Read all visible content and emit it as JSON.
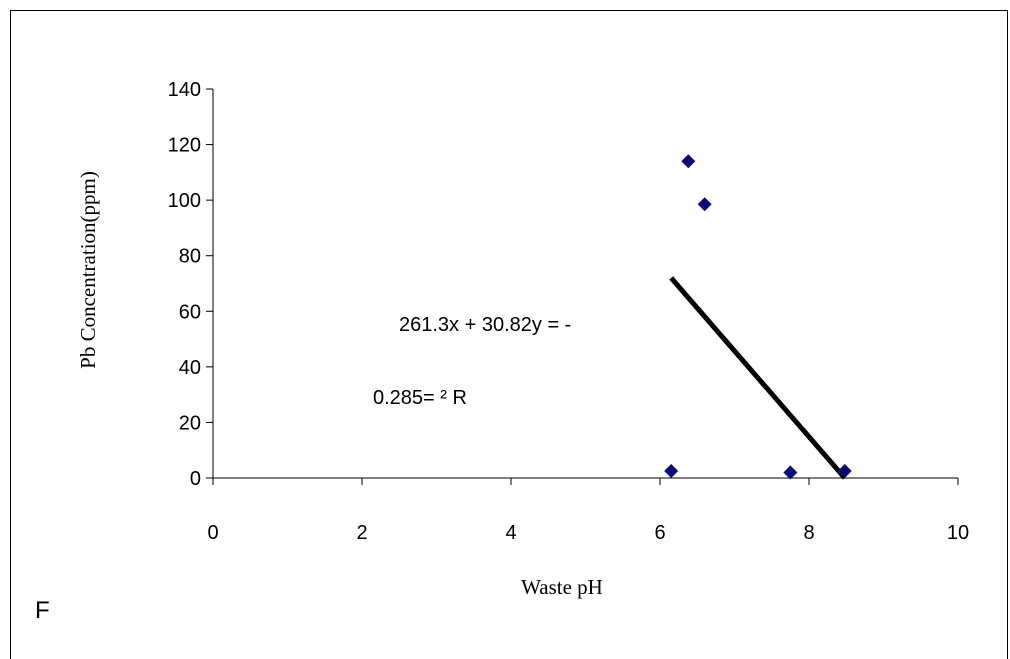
{
  "panel_letter": "F",
  "chart_data": {
    "type": "scatter",
    "title": "",
    "xlabel": "Waste pH",
    "ylabel": "Pb Concentration(ppm)",
    "xlim": [
      0,
      10
    ],
    "ylim": [
      0,
      140
    ],
    "x_ticks": [
      0,
      2,
      4,
      6,
      8,
      10
    ],
    "y_ticks": [
      0,
      20,
      40,
      60,
      80,
      100,
      120,
      140
    ],
    "grid": false,
    "legend": "none",
    "marker": "diamond",
    "marker_color": "#0a0a7a",
    "points": [
      {
        "x": 6.15,
        "y": 2.5
      },
      {
        "x": 6.38,
        "y": 114
      },
      {
        "x": 6.6,
        "y": 98.5
      },
      {
        "x": 7.75,
        "y": 2
      },
      {
        "x": 8.48,
        "y": 2.5
      }
    ],
    "trendline": {
      "color": "#000000",
      "from": {
        "x": 6.15,
        "y": 72
      },
      "to": {
        "x": 8.48,
        "y": 0
      }
    },
    "annotations": [
      "261.3x + 30.82y = -",
      "0.285= ² R"
    ]
  }
}
